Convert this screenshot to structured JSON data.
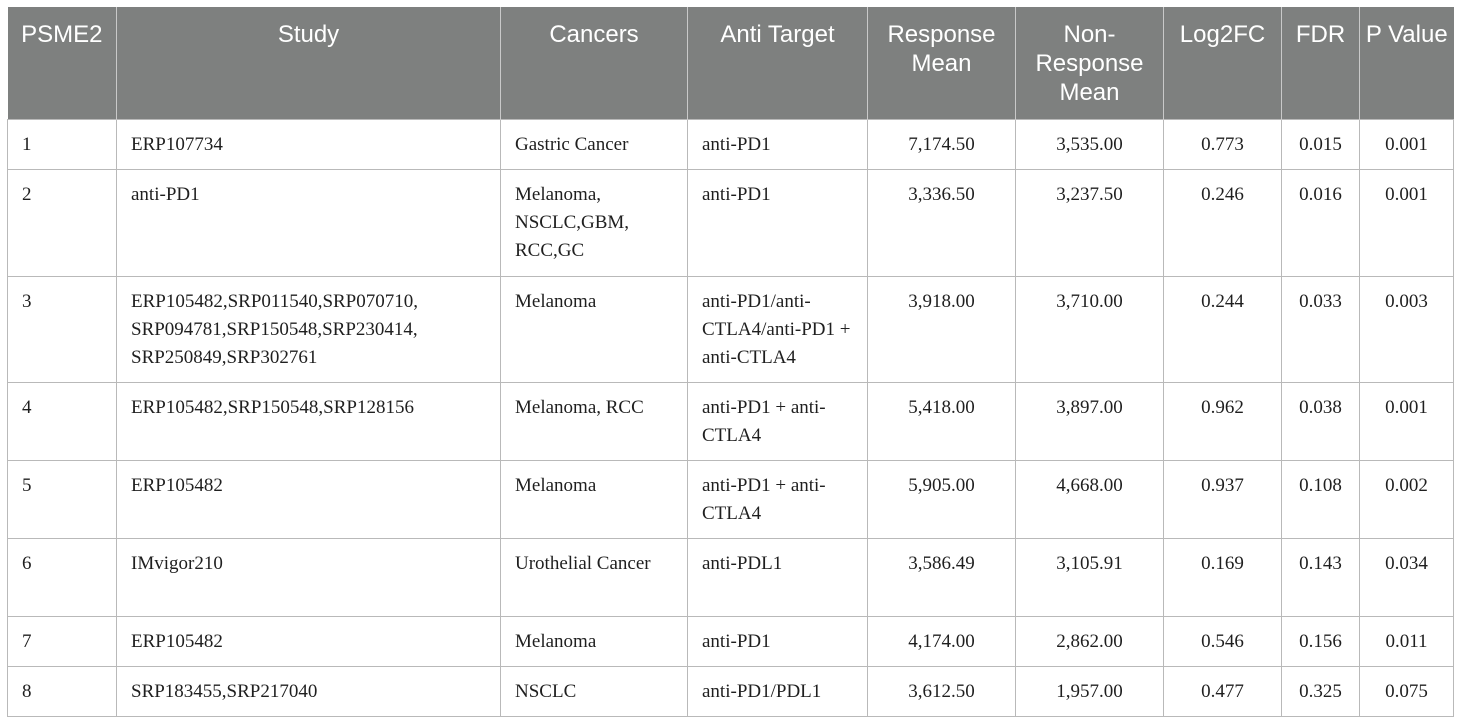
{
  "headers": [
    "PSME2",
    "Study",
    "Cancers",
    "Anti Target",
    "Response Mean",
    "Non-Response Mean",
    "Log2FC",
    "FDR",
    "P Value"
  ],
  "rows": [
    {
      "no": "1",
      "study": "ERP107734",
      "cancers": "Gastric Cancer",
      "anti_target": "anti-PD1",
      "response_mean": "7,174.50",
      "non_response_mean": "3,535.00",
      "log2fc": "0.773",
      "fdr": "0.015",
      "p_value": "0.001"
    },
    {
      "no": "2",
      "study": "anti-PD1",
      "cancers": "Melanoma, NSCLC,GBM, RCC,GC",
      "anti_target": "anti-PD1",
      "response_mean": "3,336.50",
      "non_response_mean": "3,237.50",
      "log2fc": "0.246",
      "fdr": "0.016",
      "p_value": "0.001"
    },
    {
      "no": "3",
      "study": "ERP105482,SRP011540,SRP070710, SRP094781,SRP150548,SRP230414, SRP250849,SRP302761",
      "cancers": "Melanoma",
      "anti_target": "anti-PD1/anti-CTLA4/anti-PD1 + anti-CTLA4",
      "response_mean": "3,918.00",
      "non_response_mean": "3,710.00",
      "log2fc": "0.244",
      "fdr": "0.033",
      "p_value": "0.003"
    },
    {
      "no": "4",
      "study": "ERP105482,SRP150548,SRP128156",
      "cancers": "Melanoma, RCC",
      "anti_target": "anti-PD1 + anti-CTLA4",
      "response_mean": "5,418.00",
      "non_response_mean": "3,897.00",
      "log2fc": "0.962",
      "fdr": "0.038",
      "p_value": "0.001"
    },
    {
      "no": "5",
      "study": "ERP105482",
      "cancers": "Melanoma",
      "anti_target": "anti-PD1 + anti-CTLA4",
      "response_mean": "5,905.00",
      "non_response_mean": "4,668.00",
      "log2fc": "0.937",
      "fdr": "0.108",
      "p_value": "0.002"
    },
    {
      "no": "6",
      "study": "IMvigor210",
      "cancers": "Urothelial Cancer",
      "anti_target": "anti-PDL1",
      "response_mean": "3,586.49",
      "non_response_mean": "3,105.91",
      "log2fc": "0.169",
      "fdr": "0.143",
      "p_value": "0.034"
    },
    {
      "no": "7",
      "study": "ERP105482",
      "cancers": "Melanoma",
      "anti_target": "anti-PD1",
      "response_mean": "4,174.00",
      "non_response_mean": "2,862.00",
      "log2fc": "0.546",
      "fdr": "0.156",
      "p_value": "0.011"
    },
    {
      "no": "8",
      "study": "SRP183455,SRP217040",
      "cancers": "NSCLC",
      "anti_target": "anti-PD1/PDL1",
      "response_mean": "3,612.50",
      "non_response_mean": "1,957.00",
      "log2fc": "0.477",
      "fdr": "0.325",
      "p_value": "0.075"
    }
  ]
}
